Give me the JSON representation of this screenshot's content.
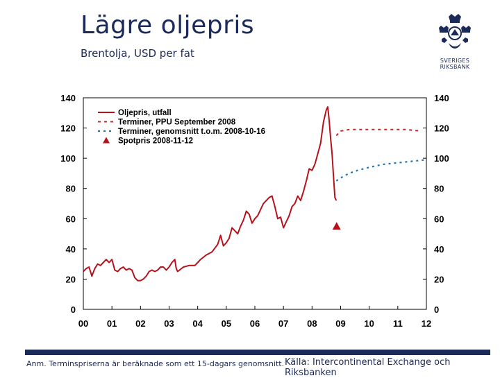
{
  "header": {
    "title": "Lägre oljepris",
    "subtitle": "Brentolja, USD per fat"
  },
  "logo": {
    "line1": "SVERIGES",
    "line2": "RIKSBANK"
  },
  "footer": {
    "note": "Anm. Terminspriserna är beräknade som ett 15-dagars genomsnitt.",
    "source": "Källa: Intercontinental Exchange och Riksbanken"
  },
  "colors": {
    "text": "#1c2a5a",
    "series_outcome": "#b5121b",
    "series_ppu": "#c1272d",
    "series_avg": "#1f78b4",
    "spot": "#b5121b"
  },
  "chart_data": {
    "type": "line",
    "title": "",
    "xlabel": "",
    "ylabel": "",
    "ylim": [
      0,
      140
    ],
    "xlim": [
      2000,
      2012
    ],
    "yticks": [
      "0",
      "20",
      "40",
      "60",
      "80",
      "100",
      "120",
      "140"
    ],
    "ytick_values": [
      0,
      20,
      40,
      60,
      80,
      100,
      120,
      140
    ],
    "xticks": [
      "00",
      "01",
      "02",
      "03",
      "04",
      "05",
      "06",
      "07",
      "08",
      "09",
      "10",
      "11",
      "12"
    ],
    "xtick_values": [
      2000,
      2001,
      2002,
      2003,
      2004,
      2005,
      2006,
      2007,
      2008,
      2009,
      2010,
      2011,
      2012
    ],
    "grid": false,
    "legend_position": "top-left",
    "series": [
      {
        "name": "Oljepris, utfall",
        "style": "solid",
        "points": [
          [
            2000.0,
            25
          ],
          [
            2000.1,
            27
          ],
          [
            2000.2,
            28
          ],
          [
            2000.3,
            22
          ],
          [
            2000.4,
            27
          ],
          [
            2000.5,
            30
          ],
          [
            2000.6,
            29
          ],
          [
            2000.7,
            31
          ],
          [
            2000.8,
            33
          ],
          [
            2000.9,
            31
          ],
          [
            2001.0,
            33
          ],
          [
            2001.1,
            26
          ],
          [
            2001.2,
            25
          ],
          [
            2001.3,
            27
          ],
          [
            2001.4,
            28
          ],
          [
            2001.5,
            26
          ],
          [
            2001.6,
            27
          ],
          [
            2001.7,
            26
          ],
          [
            2001.8,
            21
          ],
          [
            2001.9,
            19
          ],
          [
            2002.0,
            19
          ],
          [
            2002.1,
            20
          ],
          [
            2002.2,
            22
          ],
          [
            2002.3,
            25
          ],
          [
            2002.4,
            26
          ],
          [
            2002.5,
            25
          ],
          [
            2002.6,
            26
          ],
          [
            2002.7,
            28
          ],
          [
            2002.8,
            28
          ],
          [
            2002.9,
            26
          ],
          [
            2003.0,
            28
          ],
          [
            2003.1,
            31
          ],
          [
            2003.2,
            33
          ],
          [
            2003.25,
            27
          ],
          [
            2003.3,
            25
          ],
          [
            2003.5,
            28
          ],
          [
            2003.7,
            29
          ],
          [
            2003.9,
            29
          ],
          [
            2004.0,
            31
          ],
          [
            2004.1,
            33
          ],
          [
            2004.3,
            36
          ],
          [
            2004.5,
            38
          ],
          [
            2004.7,
            43
          ],
          [
            2004.8,
            49
          ],
          [
            2004.9,
            42
          ],
          [
            2005.0,
            44
          ],
          [
            2005.1,
            47
          ],
          [
            2005.2,
            54
          ],
          [
            2005.3,
            52
          ],
          [
            2005.4,
            50
          ],
          [
            2005.5,
            55
          ],
          [
            2005.6,
            59
          ],
          [
            2005.7,
            65
          ],
          [
            2005.8,
            63
          ],
          [
            2005.9,
            57
          ],
          [
            2006.0,
            60
          ],
          [
            2006.1,
            62
          ],
          [
            2006.3,
            70
          ],
          [
            2006.4,
            72
          ],
          [
            2006.5,
            74
          ],
          [
            2006.6,
            75
          ],
          [
            2006.7,
            68
          ],
          [
            2006.8,
            60
          ],
          [
            2006.9,
            61
          ],
          [
            2007.0,
            54
          ],
          [
            2007.1,
            58
          ],
          [
            2007.2,
            62
          ],
          [
            2007.3,
            68
          ],
          [
            2007.4,
            70
          ],
          [
            2007.5,
            75
          ],
          [
            2007.6,
            72
          ],
          [
            2007.7,
            78
          ],
          [
            2007.8,
            85
          ],
          [
            2007.9,
            93
          ],
          [
            2008.0,
            92
          ],
          [
            2008.1,
            96
          ],
          [
            2008.2,
            103
          ],
          [
            2008.3,
            110
          ],
          [
            2008.4,
            124
          ],
          [
            2008.5,
            132
          ],
          [
            2008.55,
            134
          ],
          [
            2008.6,
            125
          ],
          [
            2008.65,
            113
          ],
          [
            2008.7,
            103
          ],
          [
            2008.75,
            88
          ],
          [
            2008.8,
            74
          ],
          [
            2008.85,
            72
          ]
        ]
      },
      {
        "name": "Terminer, PPU September 2008",
        "style": "dashed",
        "points": [
          [
            2008.85,
            115
          ],
          [
            2009.0,
            118
          ],
          [
            2009.3,
            119
          ],
          [
            2009.8,
            119
          ],
          [
            2010.3,
            119
          ],
          [
            2010.8,
            119
          ],
          [
            2011.3,
            119
          ],
          [
            2011.8,
            118
          ]
        ]
      },
      {
        "name": "Terminer, genomsnitt t.o.m. 2008-10-16",
        "style": "dashed",
        "points": [
          [
            2008.85,
            85
          ],
          [
            2009.0,
            87
          ],
          [
            2009.3,
            90
          ],
          [
            2009.6,
            92
          ],
          [
            2010.0,
            94
          ],
          [
            2010.5,
            96
          ],
          [
            2011.0,
            97
          ],
          [
            2011.5,
            98
          ],
          [
            2012.0,
            99
          ]
        ]
      },
      {
        "name": "Spotpris 2008-11-12",
        "style": "marker",
        "points": [
          [
            2008.86,
            55
          ]
        ]
      }
    ]
  }
}
